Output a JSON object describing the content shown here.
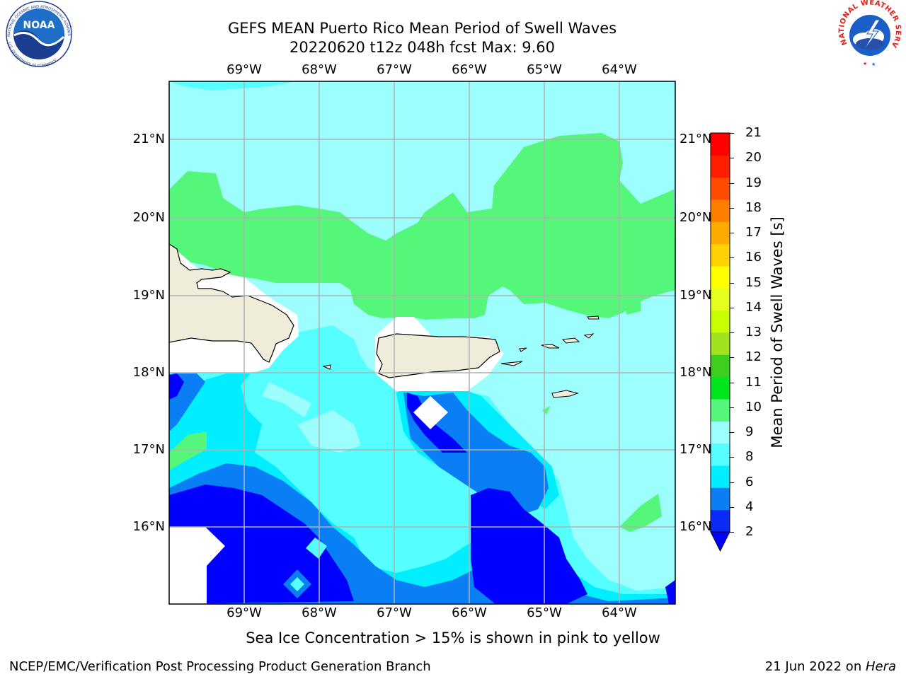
{
  "title": {
    "line1": "GEFS MEAN Puerto Rico Mean Period of Swell Waves",
    "line2": "20220620 t12z 048h fcst   Max: 9.60"
  },
  "map": {
    "lon_labels": [
      "69°W",
      "68°W",
      "67°W",
      "66°W",
      "65°W",
      "64°W"
    ],
    "lat_labels": [
      "21°N",
      "20°N",
      "19°N",
      "18°N",
      "17°N",
      "16°N"
    ],
    "land_color": "#efedda",
    "grid_color": "#b0b0b0"
  },
  "colorbar": {
    "label": "Mean Period of Swell Waves [s]",
    "ticks": [
      "2",
      "4",
      "6",
      "8",
      "9",
      "10",
      "11",
      "12",
      "13",
      "14",
      "15",
      "16",
      "17",
      "18",
      "19",
      "20",
      "21"
    ],
    "colors": [
      "#0a2af5",
      "#0a7ff5",
      "#00eeff",
      "#55ffff",
      "#9cfffe",
      "#55f77b",
      "#00e61e",
      "#3ccf1e",
      "#a0e21e",
      "#c8ff00",
      "#e6ff1e",
      "#ffff00",
      "#ffd200",
      "#ffaa00",
      "#ff7d00",
      "#ff4b00",
      "#ff1e00",
      "#ff0000"
    ],
    "extend_color": "#0000ff"
  },
  "caption": "Sea Ice Concentration > 15% is shown in pink to yellow",
  "footer": {
    "left": "NCEP/EMC/Verification Post Processing Product Generation Branch",
    "right_prefix": "21 Jun 2022 on ",
    "right_host": "Hera"
  },
  "logos": {
    "noaa_text": "NOAA",
    "noaa_ring_top": "NATIONAL OCEANIC AND ATMOSPHERIC ADMINISTRATION",
    "noaa_ring_bottom": "U.S. DEPARTMENT OF COMMERCE",
    "nws_ring": "NATIONAL WEATHER SERVICE"
  }
}
